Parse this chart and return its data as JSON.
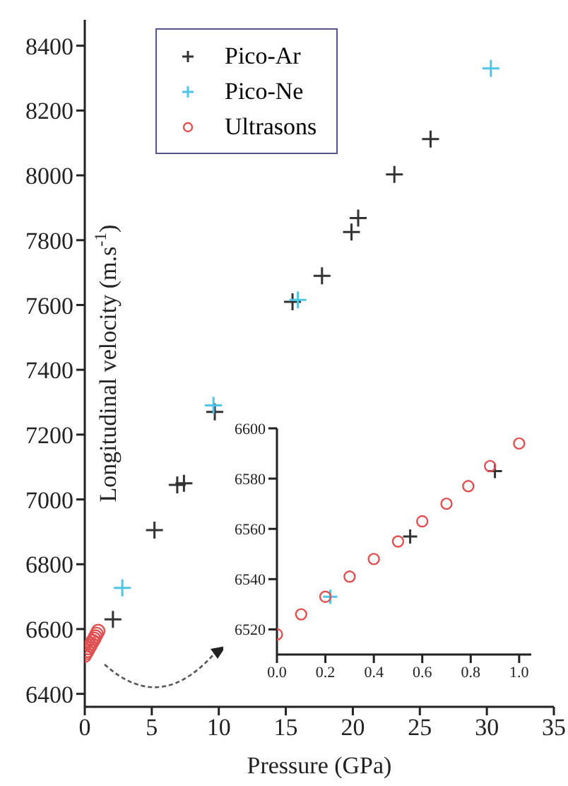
{
  "chart_data": [
    {
      "type": "scatter",
      "xlabel": "Pressure (GPa)",
      "ylabel": "Longitudinal velocity (m.s$^{-1}$)",
      "xlim": [
        0,
        35
      ],
      "xticks": [
        0,
        5,
        10,
        15,
        20,
        25,
        30,
        35
      ],
      "ylim": [
        6360,
        8480
      ],
      "yticks": [
        6400,
        6600,
        6800,
        7000,
        7200,
        7400,
        7600,
        7800,
        8000,
        8200,
        8400
      ],
      "grid": false,
      "legend": "top left",
      "series": [
        {
          "name": "Pico-Ar",
          "color": "#333333",
          "marker": "cross",
          "x": [
            2.1,
            5.2,
            6.9,
            7.4,
            9.7,
            15.5,
            17.7,
            19.9,
            20.4,
            23.1,
            25.8
          ],
          "values": [
            6630,
            6905,
            7045,
            7050,
            7270,
            7610,
            7690,
            7825,
            7868,
            8003,
            8112
          ]
        },
        {
          "name": "Pico-Ne",
          "color": "#4fc3e8",
          "marker": "cross",
          "x": [
            2.8,
            9.6,
            15.9,
            30.3
          ],
          "values": [
            6727,
            7290,
            7616,
            8330
          ]
        },
        {
          "name": "Ultrasons",
          "color": "#e05050",
          "marker": "circle",
          "x": [
            0,
            0.1,
            0.2,
            0.3,
            0.4,
            0.5,
            0.6,
            0.7,
            0.79,
            0.88,
            1.0
          ],
          "values": [
            6518,
            6526,
            6533,
            6541,
            6548,
            6555,
            6563,
            6570,
            6577,
            6585,
            6594
          ]
        }
      ]
    },
    {
      "type": "scatter",
      "xlim": [
        0,
        1.05
      ],
      "xticks": [
        {
          "value": 0,
          "label": "0.0"
        },
        {
          "value": 0.2,
          "label": "0.2"
        },
        {
          "value": 0.4,
          "label": "0.4"
        },
        {
          "value": 0.6,
          "label": "0.6"
        },
        {
          "value": 0.8,
          "label": "0.8"
        },
        {
          "value": 1,
          "label": "1.0"
        }
      ],
      "ylim": [
        6510,
        6600
      ],
      "yticks": [
        6520,
        6540,
        6560,
        6580,
        6600
      ],
      "grid": false,
      "series": [
        {
          "color": "#333333",
          "marker": "cross",
          "x": [
            0.55,
            0.9
          ],
          "values": [
            6557,
            6583
          ]
        },
        {
          "color": "#4fc3e8",
          "marker": "cross",
          "x": [
            0.22
          ],
          "values": [
            6533
          ]
        },
        {
          "color": "#e05050",
          "marker": "circle",
          "x": [
            0,
            0.1,
            0.2,
            0.3,
            0.4,
            0.5,
            0.6,
            0.7,
            0.79,
            0.88,
            1.0
          ],
          "values": [
            6518,
            6526,
            6533,
            6541,
            6548,
            6555,
            6563,
            6570,
            6577,
            6585,
            6594
          ]
        }
      ]
    }
  ]
}
